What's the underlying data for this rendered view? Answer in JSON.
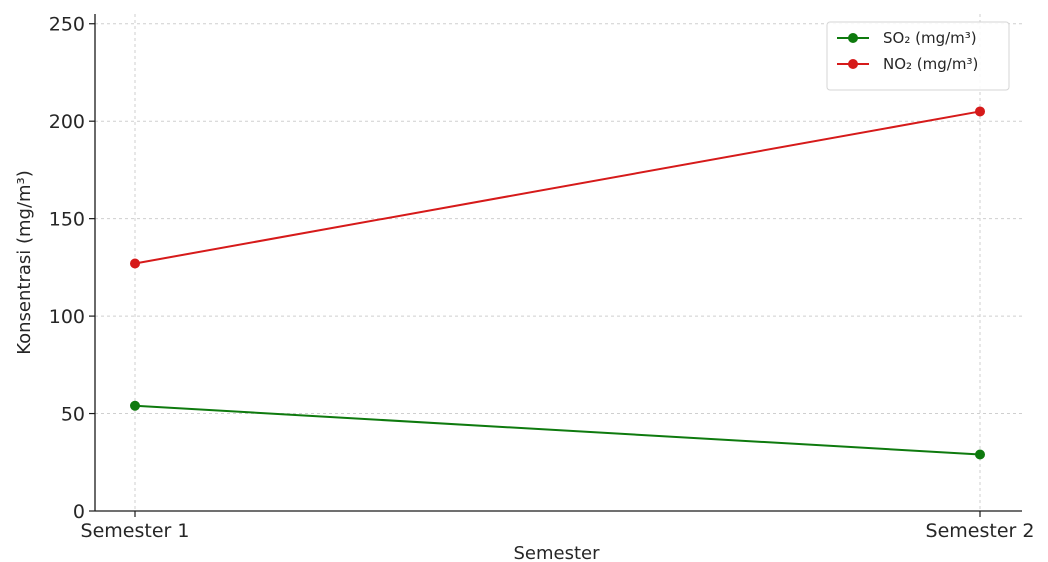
{
  "chart_data": {
    "type": "line",
    "title": "",
    "xlabel": "Semester",
    "ylabel": "Konsentrasi (mg/m³)",
    "categories": [
      "Semester 1",
      "Semester 2"
    ],
    "ylim": [
      0,
      255
    ],
    "yticks": [
      0,
      50,
      100,
      150,
      200,
      250
    ],
    "grid": true,
    "legend_position": "top-right",
    "series": [
      {
        "name": "SO₂ (mg/m³)",
        "values": [
          54,
          29
        ],
        "color": "#0e7a0e",
        "marker": "circle"
      },
      {
        "name": "NO₂ (mg/m³)",
        "values": [
          127,
          205
        ],
        "color": "#d61a1a",
        "marker": "circle"
      }
    ]
  }
}
